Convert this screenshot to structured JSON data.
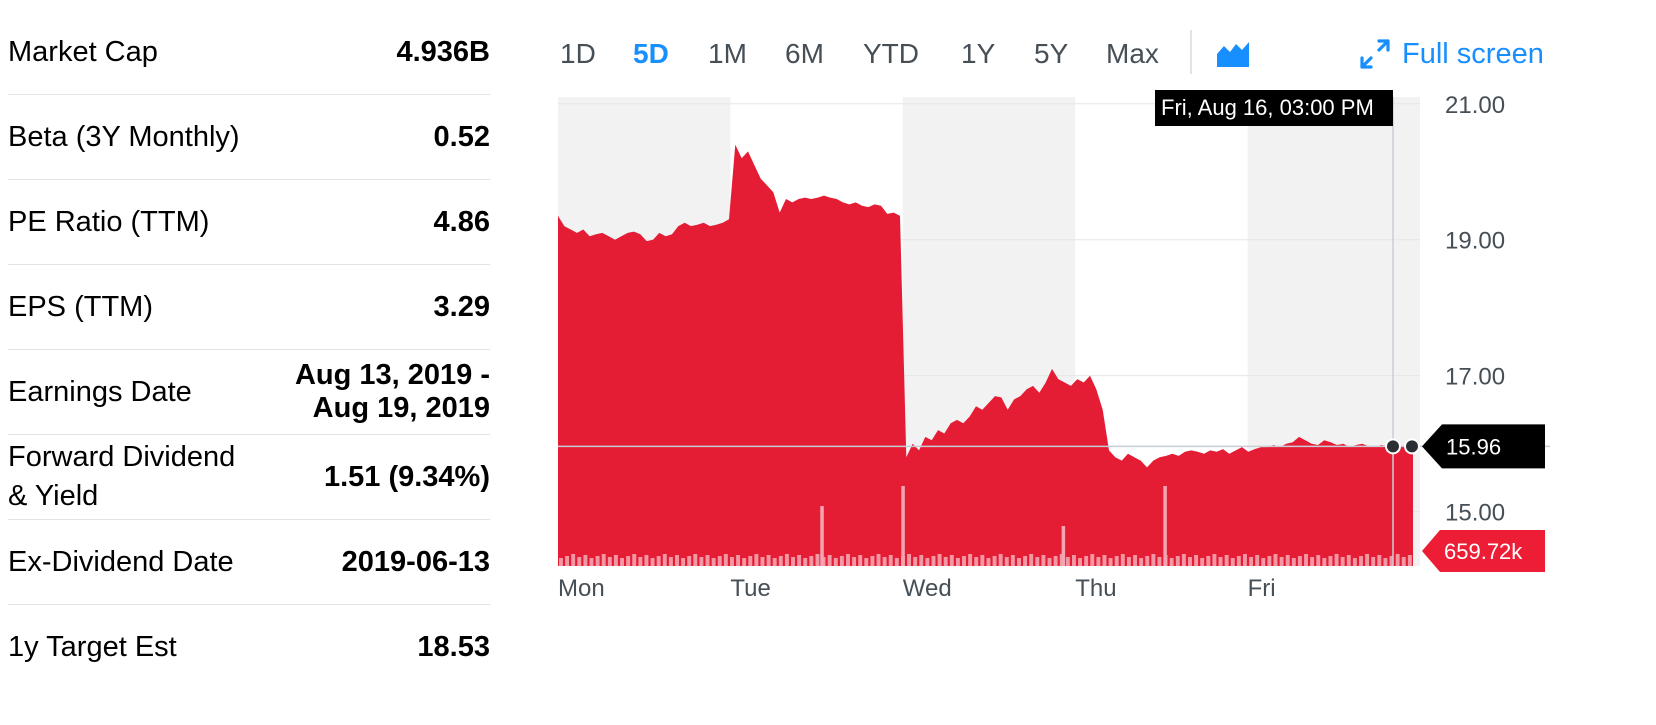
{
  "stats": [
    {
      "label": "Market Cap",
      "value": "4.936B"
    },
    {
      "label": "Beta (3Y Monthly)",
      "value": "0.52"
    },
    {
      "label": "PE Ratio (TTM)",
      "value": "4.86"
    },
    {
      "label": "EPS (TTM)",
      "value": "3.29"
    },
    {
      "label": "Earnings Date",
      "value": "Aug 13, 2019 - Aug 19, 2019"
    },
    {
      "label": "Forward Dividend & Yield",
      "value": "1.51 (9.34%)"
    },
    {
      "label": "Ex-Dividend Date",
      "value": "2019-06-13"
    },
    {
      "label": "1y Target Est",
      "value": "18.53"
    }
  ],
  "range_tabs": [
    {
      "label": "1D",
      "active": false
    },
    {
      "label": "5D",
      "active": true
    },
    {
      "label": "1M",
      "active": false
    },
    {
      "label": "6M",
      "active": false
    },
    {
      "label": "YTD",
      "active": false
    },
    {
      "label": "1Y",
      "active": false
    },
    {
      "label": "5Y",
      "active": false
    },
    {
      "label": "Max",
      "active": false
    }
  ],
  "toolbar": {
    "chart_type_icon": "area-chart-icon",
    "fullscreen_icon": "expand-arrows-icon",
    "fullscreen_label": "Full screen"
  },
  "colors": {
    "accent": "#188fff",
    "area_fill": "#e41d35",
    "volume_bar": "#f5a5b1",
    "volume_flag": "#ec1d35",
    "price_flag": "#000000",
    "shade": "#f2f2f2"
  },
  "chart_data": {
    "type": "area",
    "days": [
      "Mon",
      "Tue",
      "Wed",
      "Thu",
      "Fri"
    ],
    "y_ticks": [
      "21.00",
      "19.00",
      "17.00",
      "15.00"
    ],
    "ylim": [
      14.2,
      21.1
    ],
    "tooltip": "Fri, Aug 16, 03:00 PM",
    "last_price": "15.96",
    "last_volume": "659.72k",
    "price_series": [
      19.35,
      19.2,
      19.15,
      19.1,
      19.15,
      19.05,
      19.08,
      19.1,
      19.05,
      19.0,
      19.05,
      19.1,
      19.12,
      19.08,
      18.98,
      19.0,
      19.1,
      19.05,
      19.08,
      19.2,
      19.25,
      19.2,
      19.22,
      19.25,
      19.2,
      19.22,
      19.25,
      19.3,
      20.4,
      20.2,
      20.3,
      20.1,
      19.9,
      19.8,
      19.7,
      19.4,
      19.6,
      19.55,
      19.6,
      19.62,
      19.6,
      19.62,
      19.65,
      19.62,
      19.6,
      19.55,
      19.52,
      19.55,
      19.5,
      19.48,
      19.52,
      19.5,
      19.38,
      19.4,
      19.35,
      15.8,
      16.0,
      15.9,
      16.1,
      16.05,
      16.2,
      16.15,
      16.3,
      16.35,
      16.3,
      16.4,
      16.55,
      16.5,
      16.6,
      16.7,
      16.68,
      16.5,
      16.65,
      16.7,
      16.8,
      16.85,
      16.75,
      16.9,
      17.1,
      16.95,
      16.9,
      16.85,
      16.95,
      16.9,
      17.0,
      16.8,
      16.5,
      15.9,
      15.8,
      15.75,
      15.85,
      15.8,
      15.75,
      15.65,
      15.75,
      15.8,
      15.82,
      15.85,
      15.82,
      15.88,
      15.9,
      15.88,
      15.85,
      15.9,
      15.88,
      15.92,
      15.85,
      15.9,
      15.95,
      15.88,
      15.92,
      15.95,
      15.95,
      15.98,
      15.95,
      16.0,
      16.02,
      16.1,
      16.05,
      16.0,
      15.98,
      16.05,
      16.02,
      15.98,
      16.0,
      15.95,
      15.98,
      16.0,
      15.96,
      15.95,
      15.98,
      15.96,
      16.0,
      15.97,
      15.96,
      15.96
    ],
    "volume_spikes": [
      {
        "day": "Tue",
        "at": 0.53,
        "height": 60
      },
      {
        "day": "Wed",
        "at": 0.0,
        "height": 80
      },
      {
        "day": "Wed",
        "at": 0.93,
        "height": 40
      },
      {
        "day": "Thu",
        "at": 0.52,
        "height": 80
      }
    ]
  }
}
